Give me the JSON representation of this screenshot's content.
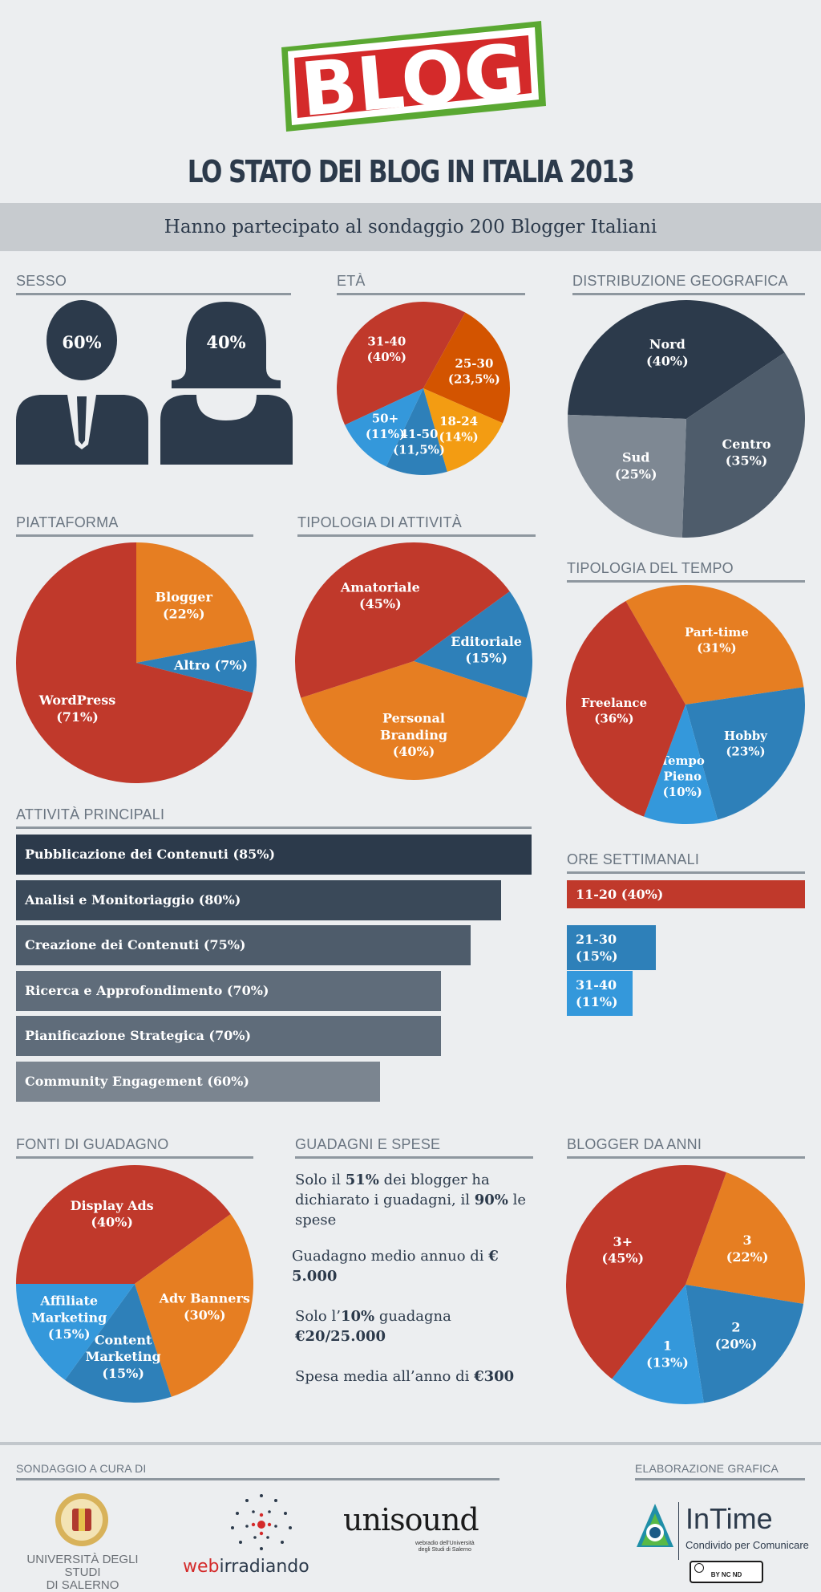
{
  "header": {
    "logo_text": "BLOG",
    "title": "LO STATO DEI BLOG IN ITALIA 2013",
    "subtitle": "Hanno partecipato al sondaggio 200 Blogger Italiani"
  },
  "sections": {
    "sesso": "SESSO",
    "eta": "ETÀ",
    "geo": "DISTRIBUZIONE GEOGRAFICA",
    "piattaforma": "PIATTAFORMA",
    "tipologia_attivita": "TIPOLOGIA DI ATTIVITÀ",
    "tipologia_tempo": "TIPOLOGIA DEL TEMPO",
    "attivita": "ATTIVITÀ PRINCIPALI",
    "ore": "ORE SETTIMANALI",
    "fonti": "FONTI DI GUADAGNO",
    "guadagni": "GUADAGNI E SPESE",
    "anni": "BLOGGER DA ANNI",
    "sondaggio": "SONDAGGIO A CURA DI",
    "elaborazione": "ELABORAZIONE GRAFICA"
  },
  "sesso": {
    "male": "60%",
    "female": "40%"
  },
  "guadagni": {
    "l1_a": "Solo il ",
    "l1_b": "51%",
    "l1_c": " dei blogger ha",
    "l2_a": "dichiarato i guadagni, il ",
    "l2_b": "90%",
    "l2_c": " le",
    "l3": "spese",
    "l4_a": "Guadagno medio annuo di ",
    "l4_b": "€ 5.000",
    "l5_a": "Solo l’",
    "l5_b": "10%",
    "l5_c": " guadagna ",
    "l5_d": "€20/25.000",
    "l6_a": "Spesa media all’anno di ",
    "l6_b": "€300"
  },
  "footer": {
    "unisa_line1": "UNIVERSITÀ DEGLI STUDI",
    "unisa_line2": "DI SALERNO",
    "web_a": "web",
    "web_b": "irradiando",
    "unisound": "unisound",
    "unisound_sub1": "webradio dell'Università",
    "unisound_sub2": "degli Studi di Salerno",
    "intime": "InTime",
    "intime_sub": "Condivido per Comunicare",
    "cc": "BY NC ND"
  },
  "colors": {
    "navy": "#2c3a4b",
    "red": "#c0392b",
    "orange": "#e67e22",
    "dark_orange": "#d35400",
    "yellow": "#f39c12",
    "blue": "#2e80b9",
    "light_blue": "#3498db",
    "slate": "#4e5c6b",
    "gray": "#7e8893"
  },
  "chart_data": [
    {
      "type": "pie",
      "title": "ETÀ",
      "categories": [
        "31-40",
        "25-30",
        "18-24",
        "41-50",
        "50+"
      ],
      "values": [
        40,
        23.5,
        14,
        11.5,
        11
      ],
      "labels": [
        "31-40\n(40%)",
        "25-30\n(23,5%)",
        "18-24\n(14%)",
        "41-50\n(11,5%)",
        "50+\n(11%)"
      ],
      "colors": [
        "#c0392b",
        "#d35400",
        "#f39c12",
        "#2e80b9",
        "#3498db"
      ]
    },
    {
      "type": "pie",
      "title": "DISTRIBUZIONE GEOGRAFICA",
      "categories": [
        "Nord",
        "Centro",
        "Sud"
      ],
      "values": [
        40,
        35,
        25
      ],
      "labels": [
        "Nord\n(40%)",
        "Centro\n(35%)",
        "Sud\n(25%)"
      ],
      "colors": [
        "#2c3a4b",
        "#4e5c6b",
        "#7e8893"
      ]
    },
    {
      "type": "pie",
      "title": "PIATTAFORMA",
      "categories": [
        "Blogger",
        "Altro",
        "WordPress"
      ],
      "values": [
        22,
        7,
        71
      ],
      "labels": [
        "Blogger\n(22%)",
        "Altro (7%)",
        "WordPress\n(71%)"
      ],
      "colors": [
        "#e67e22",
        "#2e80b9",
        "#c0392b"
      ]
    },
    {
      "type": "pie",
      "title": "TIPOLOGIA DI ATTIVITÀ",
      "categories": [
        "Editoriale",
        "Personal Branding",
        "Amatoriale"
      ],
      "values": [
        15,
        40,
        45
      ],
      "labels": [
        "Editoriale\n(15%)",
        "Personal\nBranding\n(40%)",
        "Amatoriale\n(45%)"
      ],
      "colors": [
        "#2e80b9",
        "#e67e22",
        "#c0392b"
      ]
    },
    {
      "type": "pie",
      "title": "TIPOLOGIA DEL TEMPO",
      "categories": [
        "Part-time",
        "Hobby",
        "Tempo Pieno",
        "Freelance"
      ],
      "values": [
        31,
        23,
        10,
        36
      ],
      "labels": [
        "Part-time\n(31%)",
        "Hobby\n(23%)",
        "Tempo\nPieno\n(10%)",
        "Freelance\n(36%)"
      ],
      "colors": [
        "#e67e22",
        "#2e80b9",
        "#3498db",
        "#c0392b"
      ]
    },
    {
      "type": "bar",
      "title": "ATTIVITÀ PRINCIPALI",
      "categories": [
        "Pubblicazione dei Contenuti",
        "Analisi e Monitoriaggio",
        "Creazione dei Contenuti",
        "Ricerca e Approfondimento",
        "Pianificazione Strategica",
        "Community Engagement"
      ],
      "values": [
        85,
        80,
        75,
        70,
        70,
        60
      ],
      "labels": [
        "Pubblicazione dei Contenuti (85%)",
        "Analisi e Monitoriaggio (80%)",
        "Creazione dei Contenuti (75%)",
        "Ricerca e Approfondimento (70%)",
        "Pianificazione Strategica (70%)",
        "Community Engagement (60%)"
      ],
      "colors": [
        "#2c3a4b",
        "#3a4959",
        "#4e5c6b",
        "#5f6c7a",
        "#5f6c7a",
        "#7b8590"
      ]
    },
    {
      "type": "bar",
      "title": "ORE SETTIMANALI",
      "categories": [
        "11-20",
        "21-30",
        "31-40"
      ],
      "values": [
        40,
        15,
        11
      ],
      "labels": [
        "11-20 (40%)",
        "21-30\n(15%)",
        "31-40\n(11%)"
      ],
      "colors": [
        "#c0392b",
        "#2e80b9",
        "#3498db"
      ]
    },
    {
      "type": "pie",
      "title": "FONTI DI GUADAGNO",
      "categories": [
        "Display Ads",
        "Adv Banners",
        "Content Marketing",
        "Affiliate Marketing"
      ],
      "values": [
        40,
        30,
        15,
        15
      ],
      "labels": [
        "Display Ads\n(40%)",
        "Adv Banners\n(30%)",
        "Content\nMarketing\n(15%)",
        "Affiliate\nMarketing\n(15%)"
      ],
      "colors": [
        "#c0392b",
        "#e67e22",
        "#2e80b9",
        "#3498db"
      ]
    },
    {
      "type": "pie",
      "title": "BLOGGER DA ANNI",
      "categories": [
        "3",
        "2",
        "1",
        "3+"
      ],
      "values": [
        22,
        20,
        13,
        45
      ],
      "labels": [
        "3\n(22%)",
        "2\n(20%)",
        "1\n(13%)",
        "3+\n(45%)"
      ],
      "colors": [
        "#e67e22",
        "#2e80b9",
        "#3498db",
        "#c0392b"
      ]
    }
  ]
}
